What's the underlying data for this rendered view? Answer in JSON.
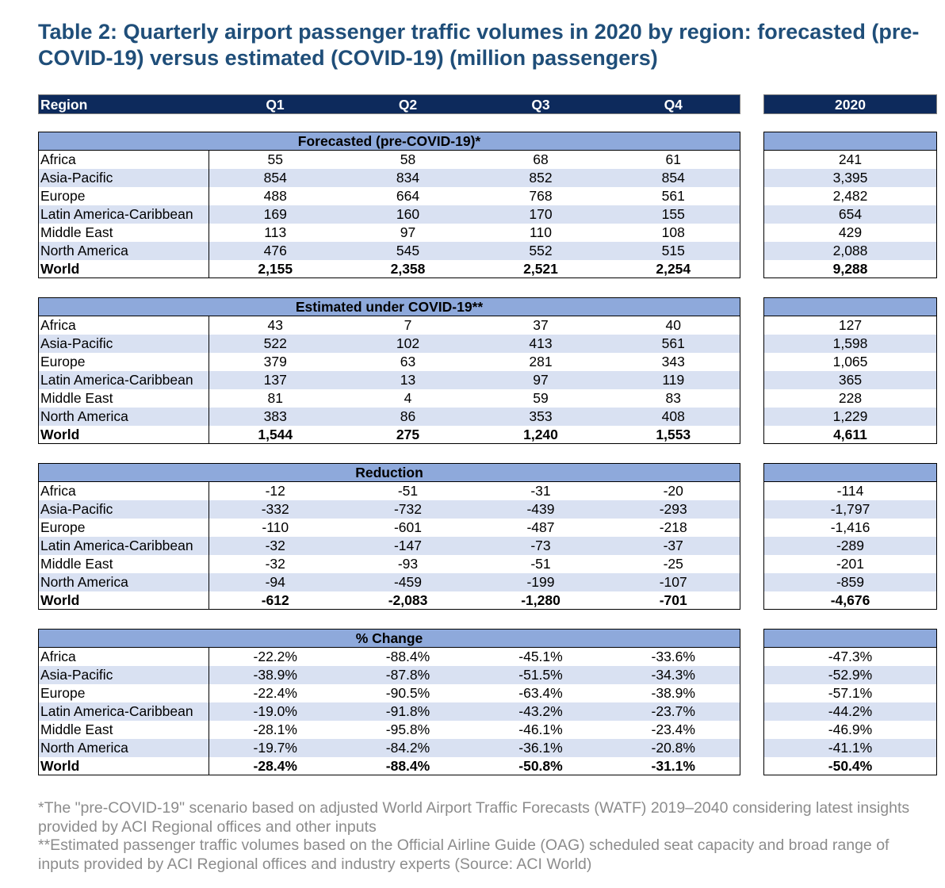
{
  "title": "Table 2: Quarterly airport passenger traffic volumes in 2020 by region: forecasted (pre-COVID-19) versus estimated (COVID-19) (million passengers)",
  "header": {
    "region": "Region",
    "q1": "Q1",
    "q2": "Q2",
    "q3": "Q3",
    "q4": "Q4",
    "year": "2020"
  },
  "sections": [
    {
      "title": "Forecasted (pre-COVID-19)*",
      "rows": [
        {
          "region": "Africa",
          "q": [
            "55",
            "58",
            "68",
            "61"
          ],
          "year": "241"
        },
        {
          "region": "Asia-Pacific",
          "q": [
            "854",
            "834",
            "852",
            "854"
          ],
          "year": "3,395"
        },
        {
          "region": "Europe",
          "q": [
            "488",
            "664",
            "768",
            "561"
          ],
          "year": "2,482"
        },
        {
          "region": "Latin America-Caribbean",
          "q": [
            "169",
            "160",
            "170",
            "155"
          ],
          "year": "654"
        },
        {
          "region": "Middle East",
          "q": [
            "113",
            "97",
            "110",
            "108"
          ],
          "year": "429"
        },
        {
          "region": "North America",
          "q": [
            "476",
            "545",
            "552",
            "515"
          ],
          "year": "2,088"
        },
        {
          "region": "World",
          "q": [
            "2,155",
            "2,358",
            "2,521",
            "2,254"
          ],
          "year": "9,288"
        }
      ]
    },
    {
      "title": "Estimated under COVID-19**",
      "rows": [
        {
          "region": "Africa",
          "q": [
            "43",
            "7",
            "37",
            "40"
          ],
          "year": "127"
        },
        {
          "region": "Asia-Pacific",
          "q": [
            "522",
            "102",
            "413",
            "561"
          ],
          "year": "1,598"
        },
        {
          "region": "Europe",
          "q": [
            "379",
            "63",
            "281",
            "343"
          ],
          "year": "1,065"
        },
        {
          "region": "Latin America-Caribbean",
          "q": [
            "137",
            "13",
            "97",
            "119"
          ],
          "year": "365"
        },
        {
          "region": "Middle East",
          "q": [
            "81",
            "4",
            "59",
            "83"
          ],
          "year": "228"
        },
        {
          "region": "North America",
          "q": [
            "383",
            "86",
            "353",
            "408"
          ],
          "year": "1,229"
        },
        {
          "region": "World",
          "q": [
            "1,544",
            "275",
            "1,240",
            "1,553"
          ],
          "year": "4,611"
        }
      ]
    },
    {
      "title": "Reduction",
      "rows": [
        {
          "region": "Africa",
          "q": [
            "-12",
            "-51",
            "-31",
            "-20"
          ],
          "year": "-114"
        },
        {
          "region": "Asia-Pacific",
          "q": [
            "-332",
            "-732",
            "-439",
            "-293"
          ],
          "year": "-1,797"
        },
        {
          "region": "Europe",
          "q": [
            "-110",
            "-601",
            "-487",
            "-218"
          ],
          "year": "-1,416"
        },
        {
          "region": "Latin America-Caribbean",
          "q": [
            "-32",
            "-147",
            "-73",
            "-37"
          ],
          "year": "-289"
        },
        {
          "region": "Middle East",
          "q": [
            "-32",
            "-93",
            "-51",
            "-25"
          ],
          "year": "-201"
        },
        {
          "region": "North America",
          "q": [
            "-94",
            "-459",
            "-199",
            "-107"
          ],
          "year": "-859"
        },
        {
          "region": "World",
          "q": [
            "-612",
            "-2,083",
            "-1,280",
            "-701"
          ],
          "year": "-4,676"
        }
      ]
    },
    {
      "title": "% Change",
      "rows": [
        {
          "region": "Africa",
          "q": [
            "-22.2%",
            "-88.4%",
            "-45.1%",
            "-33.6%"
          ],
          "year": "-47.3%"
        },
        {
          "region": "Asia-Pacific",
          "q": [
            "-38.9%",
            "-87.8%",
            "-51.5%",
            "-34.3%"
          ],
          "year": "-52.9%"
        },
        {
          "region": "Europe",
          "q": [
            "-22.4%",
            "-90.5%",
            "-63.4%",
            "-38.9%"
          ],
          "year": "-57.1%"
        },
        {
          "region": "Latin America-Caribbean",
          "q": [
            "-19.0%",
            "-91.8%",
            "-43.2%",
            "-23.7%"
          ],
          "year": "-44.2%"
        },
        {
          "region": "Middle East",
          "q": [
            "-28.1%",
            "-95.8%",
            "-46.1%",
            "-23.4%"
          ],
          "year": "-46.9%"
        },
        {
          "region": "North America",
          "q": [
            "-19.7%",
            "-84.2%",
            "-36.1%",
            "-20.8%"
          ],
          "year": "-41.1%"
        },
        {
          "region": "World",
          "q": [
            "-28.4%",
            "-88.4%",
            "-50.8%",
            "-31.1%"
          ],
          "year": "-50.4%"
        }
      ]
    }
  ],
  "footnotes": [
    "*The \"pre-COVID-19\" scenario based on adjusted World Airport Traffic Forecasts (WATF) 2019–2040 considering latest insights provided by ACI Regional offices and other inputs",
    "**Estimated passenger traffic volumes based on the Official Airline Guide (OAG) scheduled seat capacity and broad range of inputs provided by ACI Regional offices and industry experts (Source: ACI World)"
  ]
}
